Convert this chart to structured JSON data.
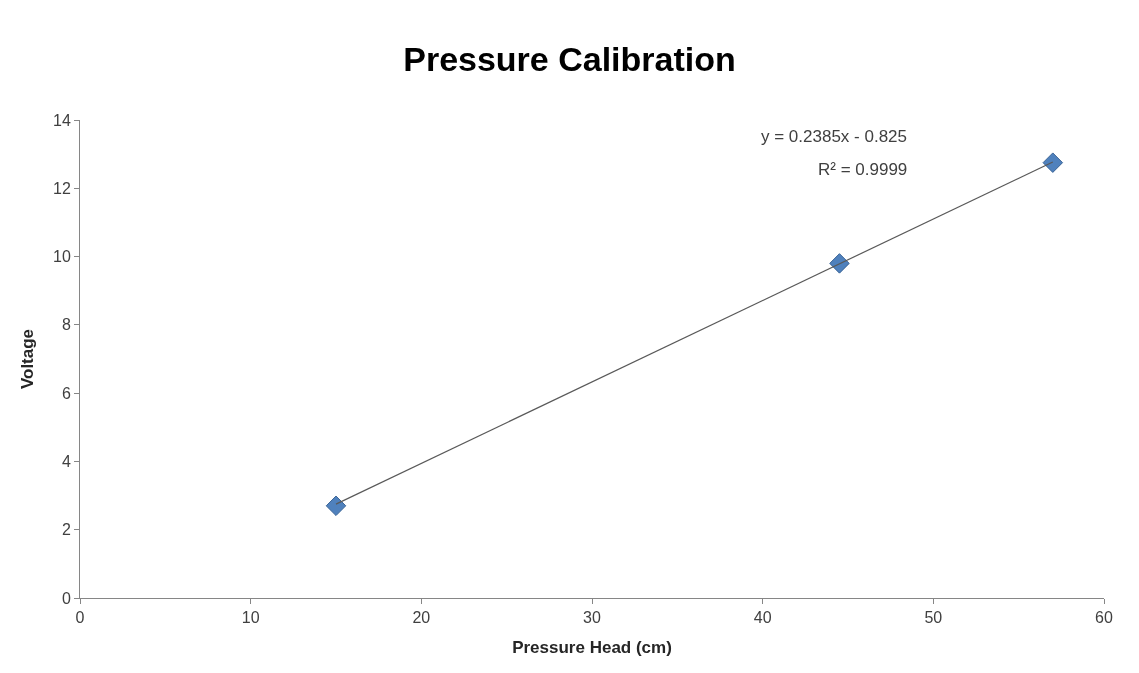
{
  "chart_data": {
    "type": "scatter",
    "title": "Pressure Calibration",
    "xlabel": "Pressure Head (cm)",
    "ylabel": "Voltage",
    "xlim": [
      0,
      60
    ],
    "xticks": [
      0,
      10,
      20,
      30,
      40,
      50,
      60
    ],
    "ylim": [
      0,
      14
    ],
    "yticks": [
      0,
      2,
      4,
      6,
      8,
      10,
      12,
      14
    ],
    "marker": "diamond",
    "series": [
      {
        "color": "#4f81bd",
        "x": [
          15,
          44.5,
          57
        ],
        "values": [
          2.7,
          9.8,
          12.75
        ]
      },
      {
        "type": "line",
        "color": "#595959",
        "marker": "none",
        "x": [
          15,
          57
        ],
        "values": [
          2.75,
          12.77
        ]
      }
    ],
    "annotations": [
      "y = 0.2385x - 0.825",
      "R² = 0.9999"
    ]
  }
}
